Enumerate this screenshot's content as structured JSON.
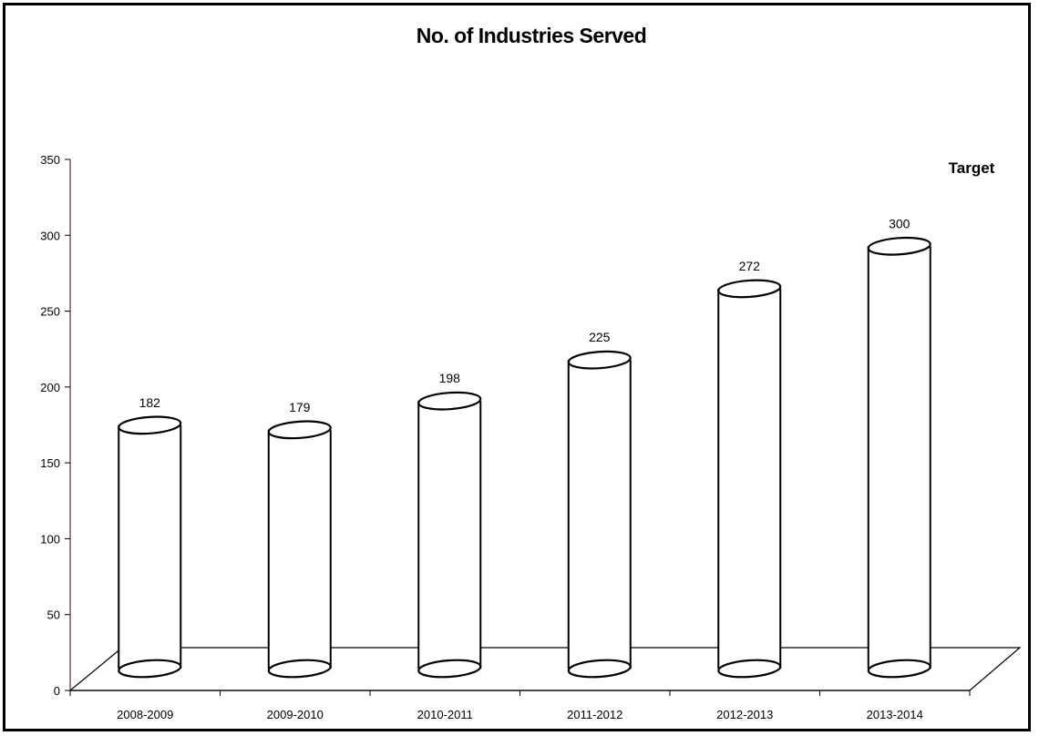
{
  "chart_data": {
    "type": "bar",
    "bar_style": "3d-cylinder",
    "title": "No. of Industries Served",
    "xlabel": "",
    "ylabel": "",
    "categories": [
      "2008-2009",
      "2009-2010",
      "2010-2011",
      "2011-2012",
      "2012-2013",
      "2013-2014"
    ],
    "values": [
      182,
      179,
      198,
      225,
      272,
      300
    ],
    "data_labels": [
      "182",
      "179",
      "198",
      "225",
      "272",
      "300"
    ],
    "annotation": "Target",
    "ylim": [
      0,
      350
    ],
    "yticks": [
      0,
      50,
      100,
      150,
      200,
      250,
      300,
      350
    ],
    "grid": false,
    "legend": "none",
    "colors": {
      "background": "#ffffff",
      "bar_outline": "#000000",
      "bar_fill": "#ffffff",
      "axis": "#7a2f5c",
      "border": "#000000"
    }
  }
}
